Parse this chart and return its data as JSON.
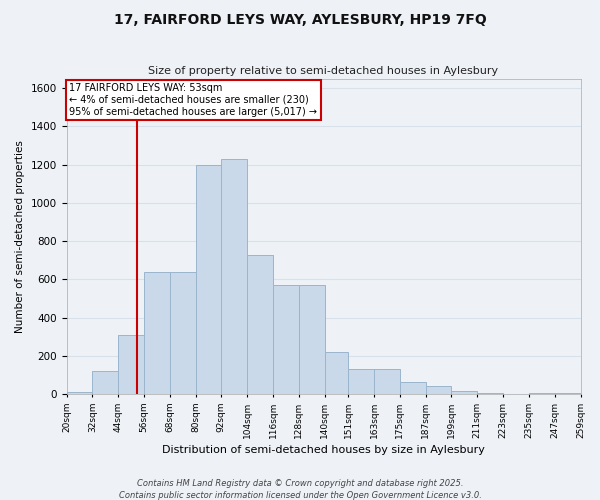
{
  "title": "17, FAIRFORD LEYS WAY, AYLESBURY, HP19 7FQ",
  "subtitle": "Size of property relative to semi-detached houses in Aylesbury",
  "xlabel": "Distribution of semi-detached houses by size in Aylesbury",
  "ylabel": "Number of semi-detached properties",
  "annotation_title": "17 FAIRFORD LEYS WAY: 53sqm",
  "annotation_line1": "← 4% of semi-detached houses are smaller (230)",
  "annotation_line2": "95% of semi-detached houses are larger (5,017) →",
  "property_size": 53,
  "bin_edges": [
    20,
    32,
    44,
    56,
    68,
    80,
    92,
    104,
    116,
    128,
    140,
    151,
    163,
    175,
    187,
    199,
    211,
    223,
    235,
    247,
    259
  ],
  "bar_heights": [
    10,
    120,
    310,
    640,
    640,
    1200,
    1230,
    730,
    570,
    570,
    220,
    130,
    130,
    65,
    40,
    15,
    5,
    0,
    5,
    5
  ],
  "bar_color": "#c9d9ea",
  "bar_edge_color": "#9ab5cc",
  "vline_color": "#cc0000",
  "vline_x": 53,
  "ylim": [
    0,
    1650
  ],
  "yticks": [
    0,
    200,
    400,
    600,
    800,
    1000,
    1200,
    1400,
    1600
  ],
  "bg_color": "#eef2f7",
  "grid_color": "#d8e0ea",
  "footer_line1": "Contains HM Land Registry data © Crown copyright and database right 2025.",
  "footer_line2": "Contains public sector information licensed under the Open Government Licence v3.0."
}
